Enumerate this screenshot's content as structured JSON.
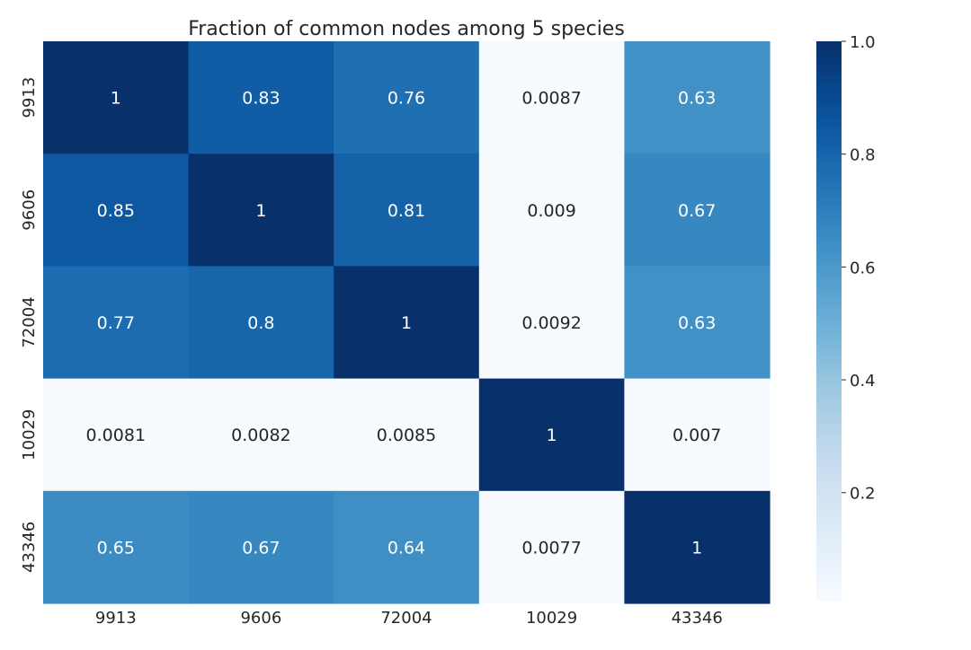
{
  "chart_data": {
    "type": "heatmap",
    "title": "Fraction of common nodes among 5 species",
    "xlabel": "",
    "ylabel": "",
    "x_categories": [
      "9913",
      "9606",
      "72004",
      "10029",
      "43346"
    ],
    "y_categories": [
      "9913",
      "9606",
      "72004",
      "10029",
      "43346"
    ],
    "values": [
      [
        1,
        0.83,
        0.76,
        0.0087,
        0.63
      ],
      [
        0.85,
        1,
        0.81,
        0.009,
        0.67
      ],
      [
        0.77,
        0.8,
        1,
        0.0092,
        0.63
      ],
      [
        0.0081,
        0.0082,
        0.0085,
        1,
        0.007
      ],
      [
        0.65,
        0.67,
        0.64,
        0.0077,
        1
      ]
    ],
    "value_labels": [
      [
        "1",
        "0.83",
        "0.76",
        "0.0087",
        "0.63"
      ],
      [
        "0.85",
        "1",
        "0.81",
        "0.009",
        "0.67"
      ],
      [
        "0.77",
        "0.8",
        "1",
        "0.0092",
        "0.63"
      ],
      [
        "0.0081",
        "0.0082",
        "0.0085",
        "1",
        "0.007"
      ],
      [
        "0.65",
        "0.67",
        "0.64",
        "0.0077",
        "1"
      ]
    ],
    "colormap": "Blues",
    "colorbar": {
      "vmin": 0.007,
      "vmax": 1.0,
      "ticks": [
        0.2,
        0.4,
        0.6,
        0.8,
        1.0
      ],
      "tick_labels": [
        "0.2",
        "0.4",
        "0.6",
        "0.8",
        "1.0"
      ]
    },
    "grid": false
  }
}
